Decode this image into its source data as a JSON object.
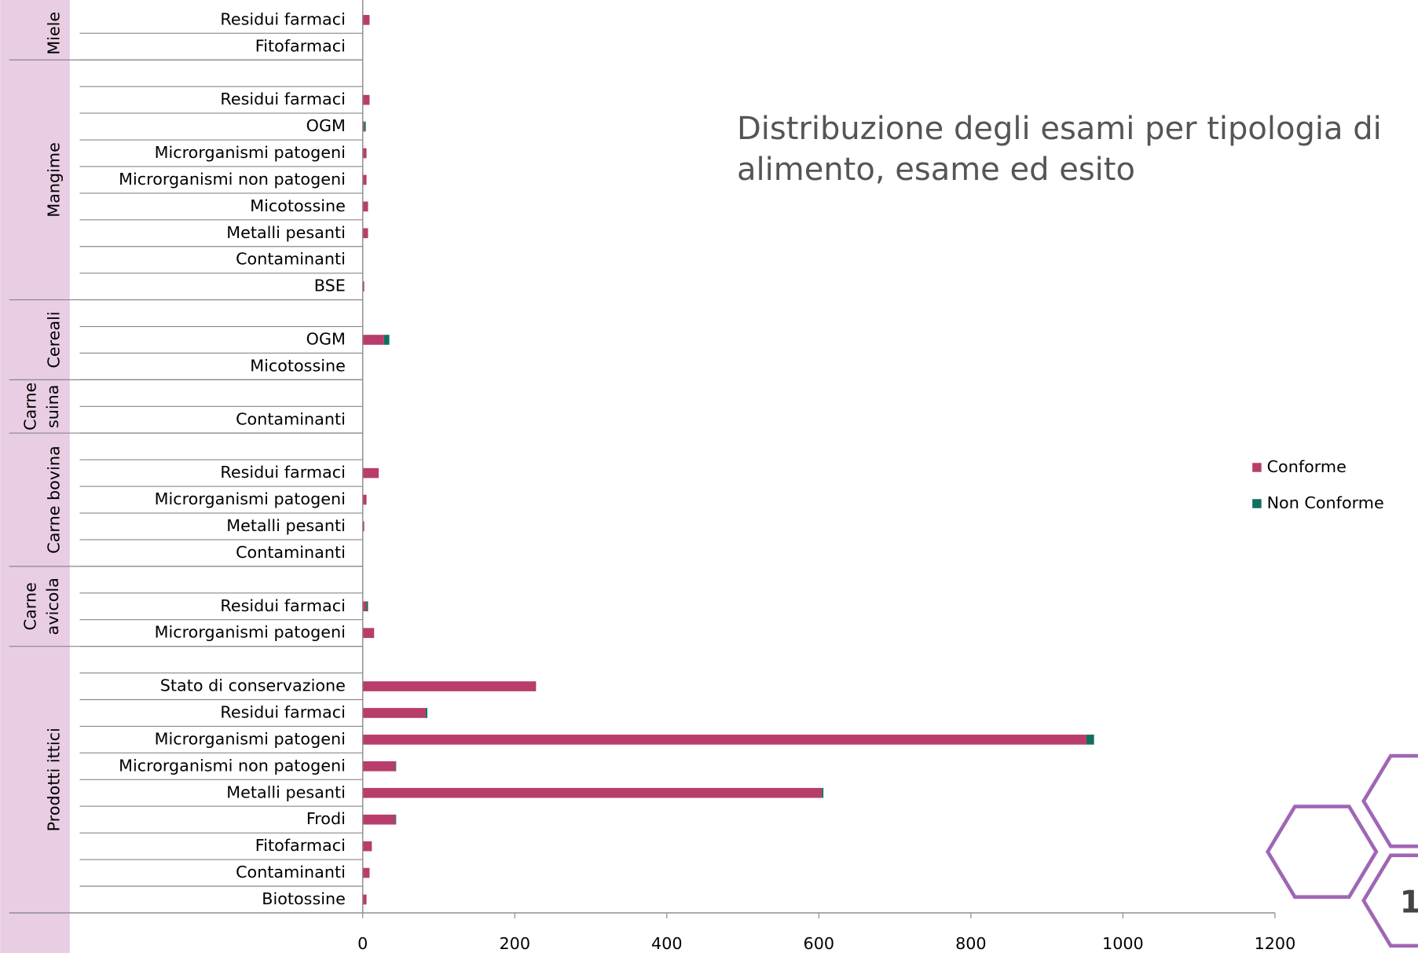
{
  "chart_data": {
    "type": "stacked-barh",
    "title": "Distribuzione degli esami per tipologia di alimento, esame ed esito",
    "groups": [
      {
        "name": "Miele",
        "categories": [
          "Residui farmaci",
          "Fitofarmaci"
        ]
      },
      {
        "name": "Mangime",
        "categories": [
          null,
          "Residui farmaci",
          "OGM",
          "Microrganismi patogeni",
          "Microrganismi non patogeni",
          "Micotossine",
          "Metalli pesanti",
          "Contaminanti",
          "BSE"
        ]
      },
      {
        "name": "Cereali",
        "categories": [
          null,
          "OGM",
          "Micotossine"
        ]
      },
      {
        "name": "Carne suina",
        "categories": [
          null,
          "Contaminanti"
        ]
      },
      {
        "name": "Carne bovina",
        "categories": [
          null,
          "Residui farmaci",
          "Microrganismi patogeni",
          "Metalli pesanti",
          "Contaminanti"
        ]
      },
      {
        "name": "Carne avicola",
        "categories": [
          null,
          "Residui farmaci",
          "Microrganismi patogeni"
        ]
      },
      {
        "name": "Prodotti ittici",
        "categories": [
          null,
          "Stato di conservazione",
          "Residui farmaci",
          "Microrganismi patogeni",
          "Microrganismi non patogeni",
          "Metalli pesanti",
          "Frodi",
          "Fitofarmaci",
          "Contaminanti",
          "Biotossine"
        ]
      }
    ],
    "series": [
      {
        "name": "Conforme",
        "color": "#b83d6b",
        "values": [
          9,
          0,
          null,
          9,
          2,
          5,
          5,
          7,
          7,
          0,
          2,
          null,
          28,
          0,
          null,
          0,
          null,
          21,
          5,
          2,
          0,
          null,
          5,
          15,
          null,
          228,
          83,
          952,
          43,
          604,
          43,
          12,
          9,
          5
        ]
      },
      {
        "name": "Non Conforme",
        "color": "#0e7060",
        "values": [
          0,
          0,
          null,
          0,
          2,
          0,
          0,
          0,
          0,
          0,
          0,
          null,
          7,
          0,
          null,
          0,
          null,
          0,
          0,
          0,
          0,
          null,
          2,
          0,
          null,
          0,
          2,
          10,
          1,
          2,
          1,
          0,
          0,
          0
        ]
      }
    ],
    "xlim": [
      0,
      1200
    ],
    "xticks": [
      0,
      200,
      400,
      600,
      800,
      1000,
      1200
    ],
    "legend": "right",
    "page_number": "1"
  }
}
